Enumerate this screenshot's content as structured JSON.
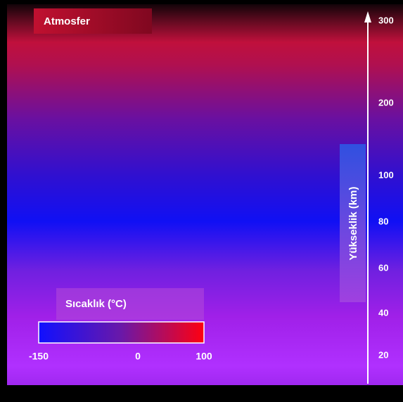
{
  "title": "Atmosfer",
  "altitude_axis": {
    "label": "Yükseklik (km)",
    "ticks": [
      300,
      200,
      100,
      80,
      60,
      40,
      20
    ]
  },
  "colorbar": {
    "label": "Sıcaklık (°C)",
    "ticks": [
      -150,
      0,
      100
    ]
  }
}
